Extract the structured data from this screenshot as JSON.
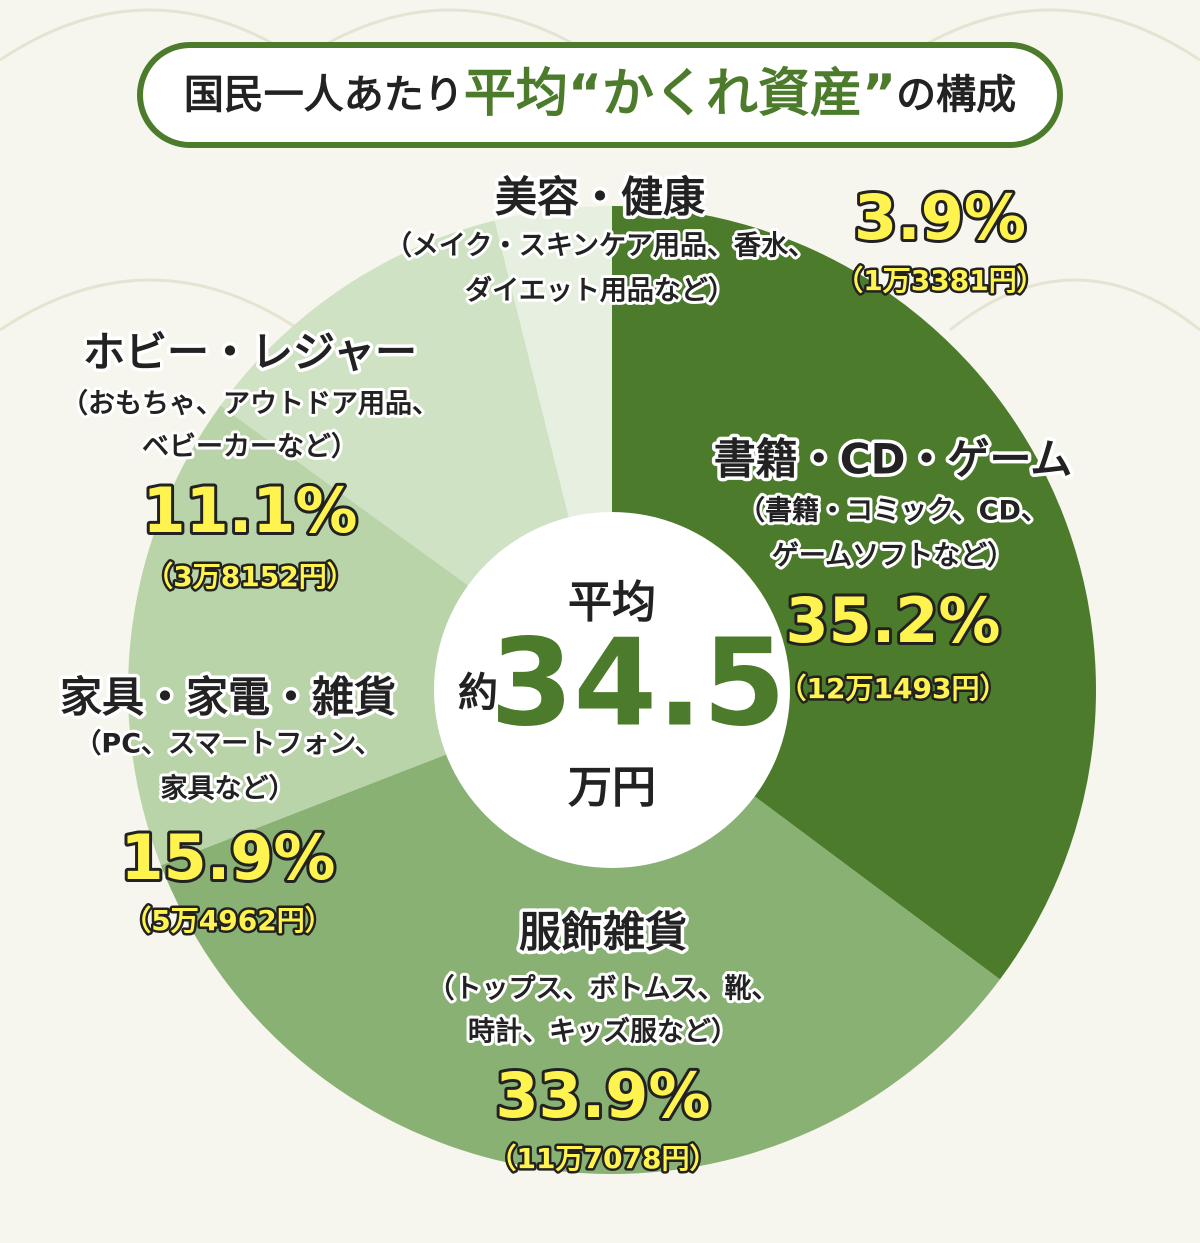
{
  "chart_data": {
    "type": "donut",
    "title": [
      "国民一人あたり",
      "平均“かくれ資産”",
      "の構成"
    ],
    "center": {
      "top": "平均",
      "prefix": "約",
      "value": 34.5,
      "unit": "万円"
    },
    "categories": [
      "書籍・CD・ゲーム",
      "服飾雑貨",
      "家具・家電・雑貨",
      "ホビー・レジャー",
      "美容・健康"
    ],
    "descriptions": [
      [
        "（書籍・コミック、CD、",
        "ゲームソフトなど）"
      ],
      [
        "（トップス、ボトムス、靴、",
        "時計、キッズ服など）"
      ],
      [
        "（PC、スマートフォン、",
        "家具など）"
      ],
      [
        "（おもちゃ、アウトドア用品、",
        "ベビーカーなど）"
      ],
      [
        "（メイク・スキンケア用品、香水、",
        "ダイエット用品など）"
      ]
    ],
    "values": [
      35.2,
      33.9,
      15.9,
      11.1,
      3.9
    ],
    "value_labels": [
      "35.2%",
      "33.9%",
      "15.9%",
      "11.1%",
      "3.9%"
    ],
    "amounts": [
      "（12万1493円）",
      "（11万7078円）",
      "（5万4962円）",
      "（3万8152円）",
      "（1万3381円）"
    ],
    "colors": [
      "#4b7b2b",
      "#89b174",
      "#b9d4a8",
      "#cfe2c3",
      "#e7f0e0"
    ]
  }
}
